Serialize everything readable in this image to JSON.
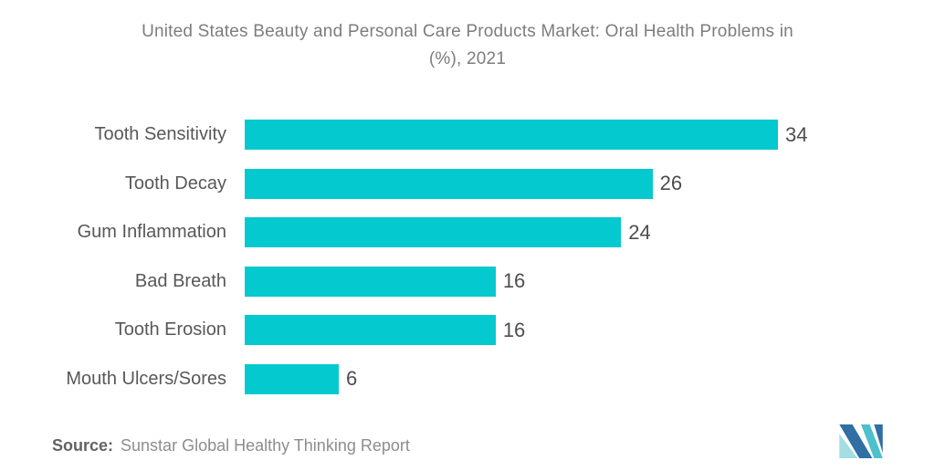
{
  "header": {
    "title_lines": [
      "United States Beauty and Personal Care Products Market: Oral Health Problems in",
      "(%), 2021"
    ]
  },
  "chart_data": {
    "type": "bar",
    "orientation": "horizontal",
    "title": "United States Beauty and Personal Care Products Market: Oral Health Problems in (%), 2021",
    "categories": [
      "Tooth Sensitivity",
      "Tooth Decay",
      "Gum Inflammation",
      "Bad Breath",
      "Tooth Erosion",
      "Mouth Ulcers/Sores"
    ],
    "values": [
      34,
      26,
      24,
      16,
      16,
      6
    ],
    "unit": "%",
    "xlabel": "",
    "ylabel": "",
    "xlim": [
      0,
      34
    ],
    "grid": false,
    "legend": false,
    "data_labels": true,
    "bar_color": "#04C9CF"
  },
  "footer": {
    "source_label": "Source:",
    "source_text": "Sunstar Global Healthy Thinking Report"
  },
  "logo": {
    "name": "mordor-intelligence-logo",
    "dark_blue": "#2F6FA3",
    "teal": "#4CC0CD",
    "light_teal": "#A3DEE4"
  }
}
